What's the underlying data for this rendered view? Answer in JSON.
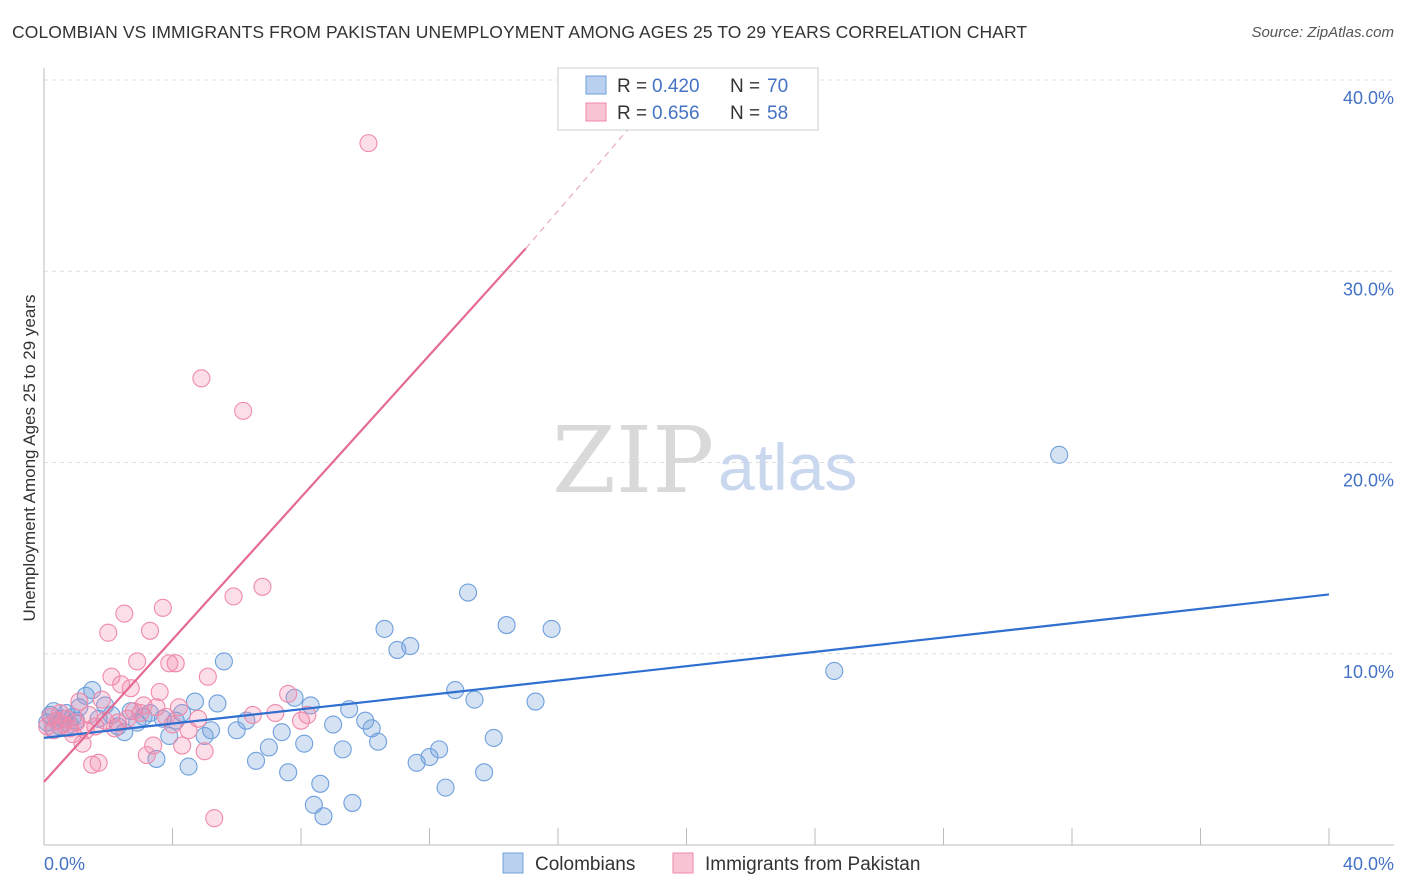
{
  "title": "COLOMBIAN VS IMMIGRANTS FROM PAKISTAN UNEMPLOYMENT AMONG AGES 25 TO 29 YEARS CORRELATION CHART",
  "source": "Source: ZipAtlas.com",
  "watermark": {
    "zip": "ZIP",
    "atlas": "atlas"
  },
  "colors": {
    "colombians": "#6fa0dc",
    "colombians_line": "#2e6fd0",
    "pakistan": "#f08aab",
    "pakistan_line": "#e46a92",
    "tick": "#4472c4",
    "grid": "#dddddd"
  },
  "legend": {
    "r_label": "R =",
    "n_label": "N =",
    "rows": [
      {
        "r": "0.420",
        "n": "70"
      },
      {
        "r": "0.656",
        "n": "58"
      }
    ]
  },
  "chart_data": {
    "type": "scatter",
    "title": "COLOMBIAN VS IMMIGRANTS FROM PAKISTAN UNEMPLOYMENT AMONG AGES 25 TO 29 YEARS CORRELATION CHART",
    "xlabel": "",
    "ylabel": "Unemployment Among Ages 25 to 29 years",
    "xlim": [
      0,
      40
    ],
    "ylim": [
      0,
      40
    ],
    "x_tick_labels": {
      "left": "0.0%",
      "right": "40.0%"
    },
    "y_tick_labels": [
      "10.0%",
      "20.0%",
      "30.0%",
      "40.0%"
    ],
    "y_tick_values": [
      10,
      20,
      30,
      40
    ],
    "grid": true,
    "legend_position": "top-center",
    "series": [
      {
        "name": "Colombians",
        "r": 0.42,
        "n": 70,
        "trend": {
          "x0": 0,
          "y0": 5.6,
          "x1": 40,
          "y1": 13.1
        },
        "points": [
          [
            0.1,
            6.4
          ],
          [
            0.2,
            6.8
          ],
          [
            0.3,
            6.1
          ],
          [
            0.3,
            7.0
          ],
          [
            0.4,
            6.5
          ],
          [
            0.5,
            6.2
          ],
          [
            0.6,
            6.6
          ],
          [
            0.7,
            6.9
          ],
          [
            0.8,
            6.3
          ],
          [
            0.9,
            6.7
          ],
          [
            1.0,
            6.5
          ],
          [
            1.1,
            7.2
          ],
          [
            1.3,
            7.8
          ],
          [
            1.5,
            8.1
          ],
          [
            1.7,
            6.6
          ],
          [
            1.9,
            7.3
          ],
          [
            2.1,
            6.8
          ],
          [
            2.3,
            6.2
          ],
          [
            2.5,
            5.9
          ],
          [
            2.7,
            7.0
          ],
          [
            2.9,
            6.4
          ],
          [
            3.1,
            6.7
          ],
          [
            3.3,
            6.9
          ],
          [
            3.5,
            4.5
          ],
          [
            3.7,
            6.6
          ],
          [
            3.9,
            5.7
          ],
          [
            4.1,
            6.5
          ],
          [
            4.3,
            6.9
          ],
          [
            4.5,
            4.1
          ],
          [
            4.7,
            7.5
          ],
          [
            5.0,
            5.7
          ],
          [
            5.2,
            6.0
          ],
          [
            5.4,
            7.4
          ],
          [
            5.6,
            9.6
          ],
          [
            6.0,
            6.0
          ],
          [
            6.3,
            6.5
          ],
          [
            6.6,
            4.4
          ],
          [
            7.0,
            5.1
          ],
          [
            7.4,
            5.9
          ],
          [
            7.6,
            3.8
          ],
          [
            7.8,
            7.7
          ],
          [
            8.1,
            5.3
          ],
          [
            8.3,
            7.3
          ],
          [
            8.4,
            2.1
          ],
          [
            8.6,
            3.2
          ],
          [
            8.7,
            1.5
          ],
          [
            9.0,
            6.3
          ],
          [
            9.3,
            5.0
          ],
          [
            9.5,
            7.1
          ],
          [
            9.6,
            2.2
          ],
          [
            10.0,
            6.5
          ],
          [
            10.2,
            6.1
          ],
          [
            10.4,
            5.4
          ],
          [
            10.6,
            11.3
          ],
          [
            11.0,
            10.2
          ],
          [
            11.4,
            10.4
          ],
          [
            11.6,
            4.3
          ],
          [
            12.0,
            4.6
          ],
          [
            12.3,
            5.0
          ],
          [
            12.5,
            3.0
          ],
          [
            12.8,
            8.1
          ],
          [
            13.2,
            13.2
          ],
          [
            13.4,
            7.6
          ],
          [
            13.7,
            3.8
          ],
          [
            14.0,
            5.6
          ],
          [
            14.4,
            11.5
          ],
          [
            15.3,
            7.5
          ],
          [
            15.8,
            11.3
          ],
          [
            24.6,
            9.1
          ],
          [
            31.6,
            20.4
          ]
        ]
      },
      {
        "name": "Immigrants from Pakistan",
        "r": 0.656,
        "n": 58,
        "trend": {
          "x0": 0,
          "y0": 3.3,
          "x1": 15.0,
          "y1": 31.2,
          "dash_to": {
            "x": 19.5,
            "y": 40.0
          }
        },
        "points": [
          [
            0.1,
            6.2
          ],
          [
            0.2,
            6.7
          ],
          [
            0.3,
            6.0
          ],
          [
            0.4,
            6.5
          ],
          [
            0.5,
            6.9
          ],
          [
            0.6,
            6.3
          ],
          [
            0.7,
            6.6
          ],
          [
            0.8,
            6.1
          ],
          [
            0.9,
            5.8
          ],
          [
            1.0,
            6.4
          ],
          [
            1.1,
            7.5
          ],
          [
            1.2,
            5.3
          ],
          [
            1.3,
            6.0
          ],
          [
            1.4,
            6.8
          ],
          [
            1.5,
            4.2
          ],
          [
            1.6,
            6.2
          ],
          [
            1.7,
            4.3
          ],
          [
            1.8,
            7.6
          ],
          [
            1.9,
            6.5
          ],
          [
            2.0,
            11.1
          ],
          [
            2.1,
            8.8
          ],
          [
            2.2,
            6.1
          ],
          [
            2.3,
            6.4
          ],
          [
            2.4,
            8.4
          ],
          [
            2.5,
            12.1
          ],
          [
            2.6,
            6.6
          ],
          [
            2.7,
            8.2
          ],
          [
            2.8,
            7.0
          ],
          [
            2.9,
            9.6
          ],
          [
            3.0,
            6.9
          ],
          [
            3.1,
            7.3
          ],
          [
            3.2,
            4.7
          ],
          [
            3.3,
            11.2
          ],
          [
            3.4,
            5.2
          ],
          [
            3.5,
            7.2
          ],
          [
            3.6,
            8.0
          ],
          [
            3.7,
            12.4
          ],
          [
            3.8,
            6.7
          ],
          [
            3.9,
            9.5
          ],
          [
            4.0,
            6.3
          ],
          [
            4.1,
            9.5
          ],
          [
            4.2,
            7.2
          ],
          [
            4.3,
            5.2
          ],
          [
            4.5,
            6.0
          ],
          [
            4.8,
            6.6
          ],
          [
            4.9,
            24.4
          ],
          [
            5.0,
            4.9
          ],
          [
            5.1,
            8.8
          ],
          [
            5.3,
            1.4
          ],
          [
            5.9,
            13.0
          ],
          [
            6.2,
            22.7
          ],
          [
            6.5,
            6.8
          ],
          [
            6.8,
            13.5
          ],
          [
            7.2,
            6.9
          ],
          [
            7.6,
            7.9
          ],
          [
            8.0,
            6.5
          ],
          [
            8.2,
            6.8
          ],
          [
            10.1,
            36.7
          ]
        ]
      }
    ]
  },
  "bottom_legend": {
    "colombians": "Colombians",
    "pakistan": "Immigrants from Pakistan"
  }
}
